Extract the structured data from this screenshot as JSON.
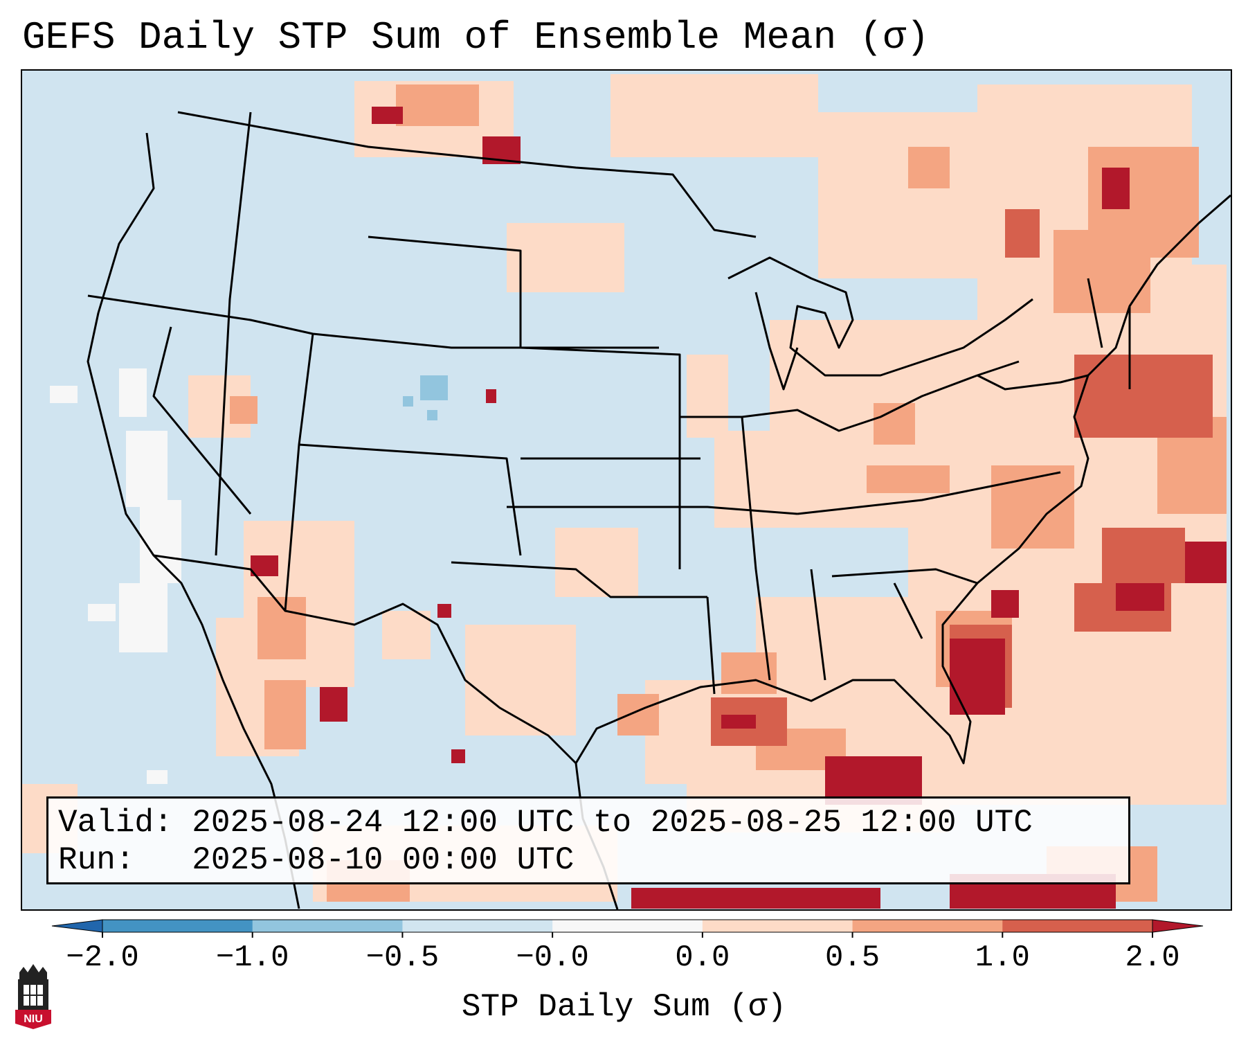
{
  "title": "GEFS Daily STP Sum of Ensemble Mean (σ)",
  "info": {
    "valid_label": "Valid:",
    "valid_value": "2025-08-24 12:00 UTC to 2025-08-25 12:00 UTC",
    "run_label": "Run:",
    "run_value": "2025-08-10 00:00 UTC"
  },
  "colorbar": {
    "label": "STP Daily Sum (σ)",
    "ticks": [
      "−2.0",
      "−1.0",
      "−0.5",
      "−0.0",
      "0.0",
      "0.5",
      "1.0",
      "2.0"
    ],
    "bins": [
      {
        "from": -2.0,
        "to": -1.0,
        "color": "#4393c3"
      },
      {
        "from": -1.0,
        "to": -0.5,
        "color": "#92c5de"
      },
      {
        "from": -0.5,
        "to": -0.0,
        "color": "#d1e5f0"
      },
      {
        "from": -0.0,
        "to": 0.0,
        "color": "#f7f7f7"
      },
      {
        "from": 0.0,
        "to": 0.5,
        "color": "#fddbc7"
      },
      {
        "from": 0.5,
        "to": 1.0,
        "color": "#f4a582"
      },
      {
        "from": 1.0,
        "to": 2.0,
        "color": "#d6604d"
      }
    ],
    "under_color": "#2166ac",
    "over_color": "#b2182b"
  },
  "map": {
    "background_color": "#d1e5f0",
    "region": "Contiguous United States, southern Canada, northern Mexico, Gulf of Mexico, western Atlantic"
  },
  "logo": {
    "text": "NIU",
    "color": "#c8102e"
  }
}
